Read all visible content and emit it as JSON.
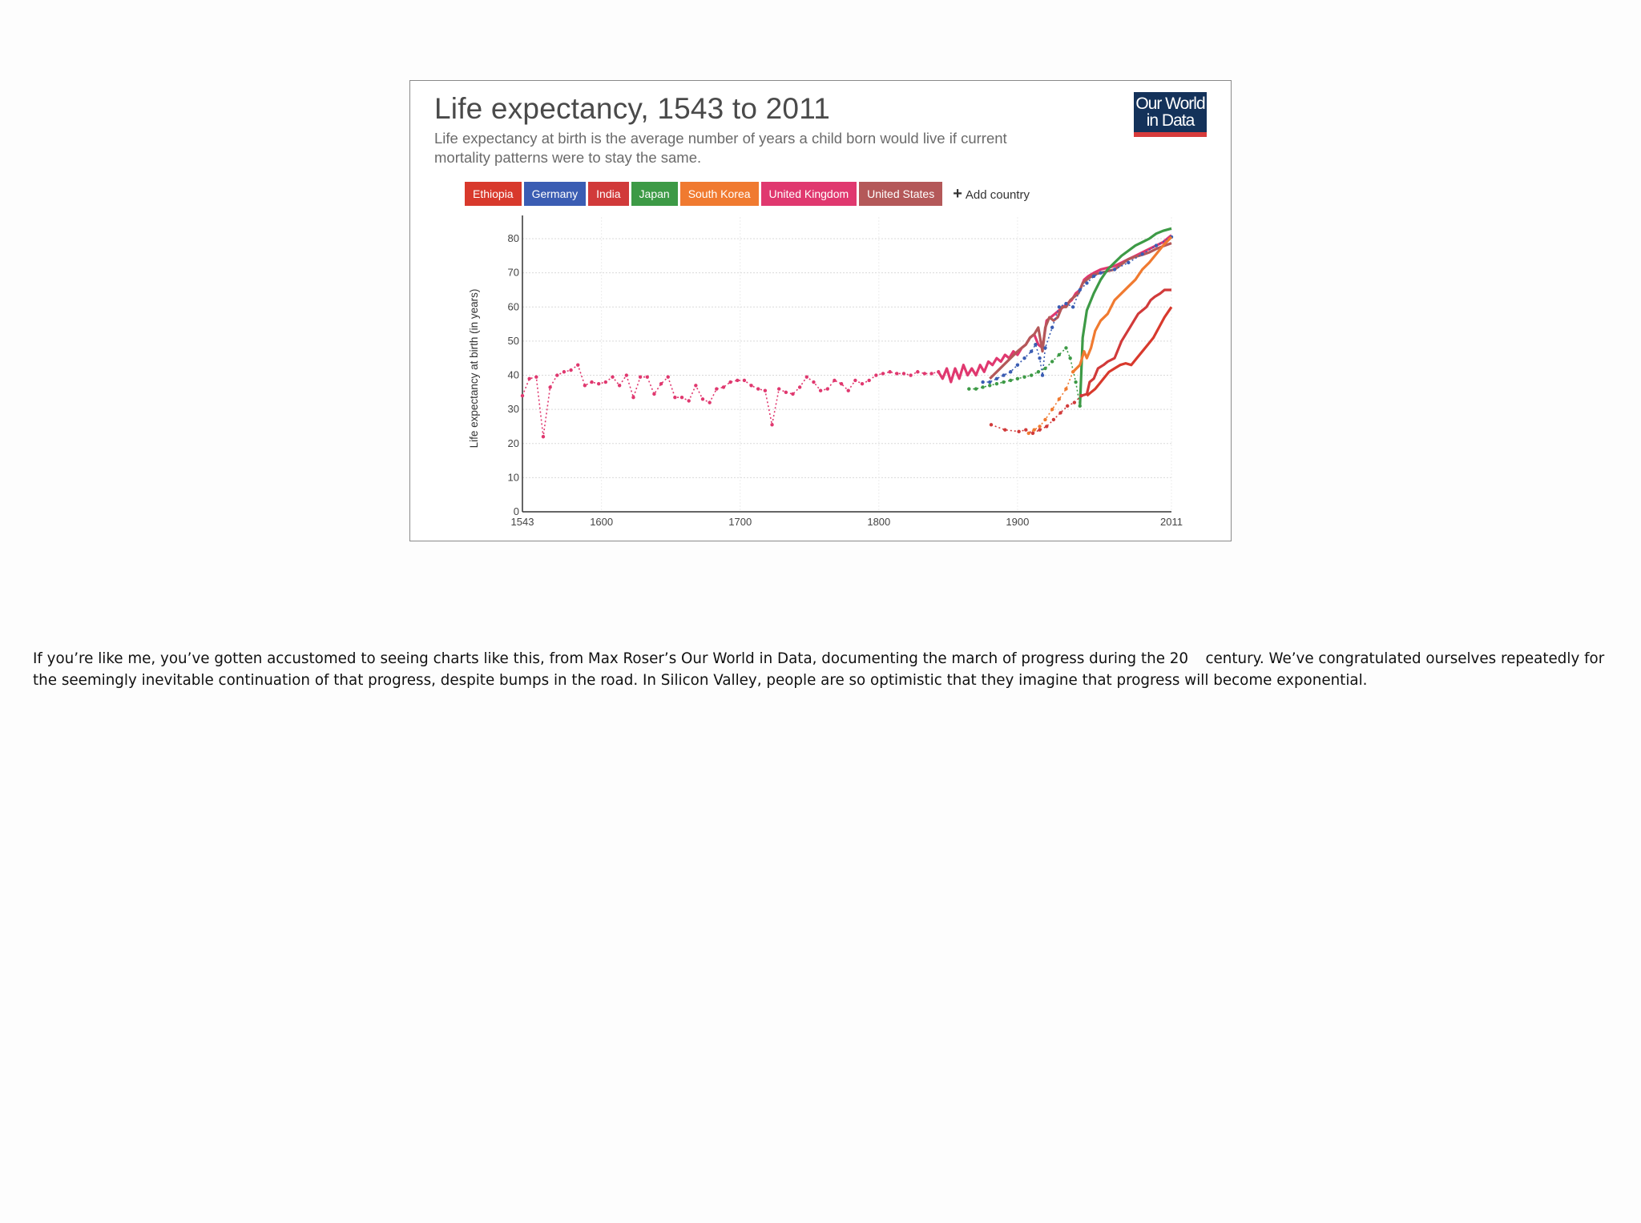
{
  "chart_data": {
    "type": "line",
    "title": "Life expectancy, 1543 to 2011",
    "subtitle": "Life expectancy at birth is the average number of years a child born would live if current mortality patterns were to stay the same.",
    "source_logo": {
      "line1": "Our World",
      "line2": "in Data"
    },
    "ylabel": "Life expectancy at birth (in years)",
    "xlabel": "",
    "xlim": [
      1543,
      2011
    ],
    "ylim": [
      0,
      84
    ],
    "x_ticks": [
      1543,
      1600,
      1700,
      1800,
      1900,
      2011
    ],
    "y_ticks": [
      0,
      10,
      20,
      30,
      40,
      50,
      60,
      70,
      80
    ],
    "add_country_label": "Add country",
    "series": [
      {
        "name": "United Kingdom",
        "color": "#e0386f",
        "style": "dotted",
        "points": [
          [
            1543,
            34
          ],
          [
            1548,
            39
          ],
          [
            1553,
            39.5
          ],
          [
            1558,
            22
          ],
          [
            1563,
            36.5
          ],
          [
            1568,
            40
          ],
          [
            1573,
            41
          ],
          [
            1578,
            41.5
          ],
          [
            1583,
            43
          ],
          [
            1588,
            37
          ],
          [
            1593,
            38
          ],
          [
            1598,
            37.5
          ],
          [
            1603,
            38
          ],
          [
            1608,
            39.5
          ],
          [
            1613,
            37
          ],
          [
            1618,
            40
          ],
          [
            1623,
            33.5
          ],
          [
            1628,
            39.5
          ],
          [
            1633,
            39.5
          ],
          [
            1638,
            34.5
          ],
          [
            1643,
            37.5
          ],
          [
            1648,
            39.5
          ],
          [
            1653,
            33.5
          ],
          [
            1658,
            33.5
          ],
          [
            1663,
            32.5
          ],
          [
            1668,
            37
          ],
          [
            1673,
            33
          ],
          [
            1678,
            32
          ],
          [
            1683,
            36
          ],
          [
            1688,
            36.5
          ],
          [
            1693,
            38
          ],
          [
            1698,
            38.5
          ],
          [
            1703,
            38.5
          ],
          [
            1708,
            37
          ],
          [
            1713,
            36
          ],
          [
            1718,
            35.5
          ],
          [
            1723,
            25.5
          ],
          [
            1728,
            36
          ],
          [
            1733,
            35
          ],
          [
            1738,
            34.5
          ],
          [
            1743,
            36.5
          ],
          [
            1748,
            39.5
          ],
          [
            1753,
            38
          ],
          [
            1758,
            35.5
          ],
          [
            1763,
            36
          ],
          [
            1768,
            38.5
          ],
          [
            1773,
            37.5
          ],
          [
            1778,
            35.5
          ],
          [
            1783,
            38.5
          ],
          [
            1788,
            37.5
          ],
          [
            1793,
            38.5
          ],
          [
            1798,
            40
          ],
          [
            1803,
            40.5
          ],
          [
            1808,
            41
          ],
          [
            1813,
            40.5
          ],
          [
            1818,
            40.5
          ],
          [
            1823,
            40
          ],
          [
            1828,
            41
          ],
          [
            1833,
            40.5
          ],
          [
            1838,
            40.5
          ],
          [
            1843,
            41
          ]
        ]
      },
      {
        "name": "United Kingdom (modern)",
        "color": "#e0386f",
        "style": "solid",
        "points": [
          [
            1843,
            41
          ],
          [
            1846,
            39
          ],
          [
            1849,
            42
          ],
          [
            1852,
            38
          ],
          [
            1855,
            42
          ],
          [
            1858,
            39
          ],
          [
            1861,
            43
          ],
          [
            1864,
            40
          ],
          [
            1867,
            42
          ],
          [
            1870,
            40
          ],
          [
            1873,
            43
          ],
          [
            1876,
            41
          ],
          [
            1879,
            44
          ],
          [
            1882,
            43
          ],
          [
            1885,
            45
          ],
          [
            1888,
            44
          ],
          [
            1891,
            46
          ],
          [
            1894,
            45
          ],
          [
            1897,
            47
          ],
          [
            1900,
            46
          ],
          [
            1903,
            48
          ],
          [
            1906,
            49
          ],
          [
            1909,
            51
          ],
          [
            1912,
            52
          ],
          [
            1915,
            49
          ],
          [
            1918,
            48
          ],
          [
            1921,
            56
          ],
          [
            1924,
            57
          ],
          [
            1927,
            58
          ],
          [
            1930,
            59
          ],
          [
            1933,
            60
          ],
          [
            1936,
            61
          ],
          [
            1939,
            62
          ],
          [
            1942,
            64
          ],
          [
            1945,
            65
          ],
          [
            1948,
            68
          ],
          [
            1951,
            69
          ],
          [
            1955,
            70
          ],
          [
            1960,
            71
          ],
          [
            1965,
            71.5
          ],
          [
            1970,
            72
          ],
          [
            1975,
            73
          ],
          [
            1980,
            74
          ],
          [
            1985,
            75
          ],
          [
            1990,
            76
          ],
          [
            1995,
            77
          ],
          [
            2000,
            78
          ],
          [
            2005,
            79
          ],
          [
            2011,
            81
          ]
        ]
      },
      {
        "name": "United States",
        "color": "#b45859",
        "style": "solid",
        "points": [
          [
            1880,
            39
          ],
          [
            1885,
            41
          ],
          [
            1890,
            43
          ],
          [
            1895,
            45
          ],
          [
            1900,
            47
          ],
          [
            1903,
            48
          ],
          [
            1906,
            49
          ],
          [
            1909,
            51
          ],
          [
            1912,
            52
          ],
          [
            1915,
            54
          ],
          [
            1918,
            47
          ],
          [
            1920,
            54
          ],
          [
            1923,
            57
          ],
          [
            1926,
            56
          ],
          [
            1929,
            57
          ],
          [
            1932,
            60
          ],
          [
            1935,
            60
          ],
          [
            1938,
            62
          ],
          [
            1941,
            63
          ],
          [
            1944,
            64
          ],
          [
            1947,
            67
          ],
          [
            1950,
            68
          ],
          [
            1955,
            69.5
          ],
          [
            1960,
            70
          ],
          [
            1965,
            70.5
          ],
          [
            1970,
            71
          ],
          [
            1975,
            72.5
          ],
          [
            1980,
            74
          ],
          [
            1985,
            74.7
          ],
          [
            1990,
            75.3
          ],
          [
            1995,
            76
          ],
          [
            2000,
            77
          ],
          [
            2005,
            77.8
          ],
          [
            2011,
            78.7
          ]
        ]
      },
      {
        "name": "Germany",
        "color": "#3b5db3",
        "style": "dotted",
        "points": [
          [
            1875,
            38
          ],
          [
            1880,
            38
          ],
          [
            1885,
            39
          ],
          [
            1890,
            40
          ],
          [
            1895,
            41
          ],
          [
            1900,
            43
          ],
          [
            1905,
            45
          ],
          [
            1910,
            47
          ],
          [
            1913,
            49
          ],
          [
            1916,
            45
          ],
          [
            1918,
            40
          ],
          [
            1920,
            48
          ],
          [
            1925,
            54
          ],
          [
            1930,
            60
          ],
          [
            1935,
            61
          ],
          [
            1940,
            60
          ],
          [
            1945,
            65
          ],
          [
            1950,
            67
          ],
          [
            1955,
            69
          ],
          [
            1960,
            70
          ],
          [
            1970,
            71
          ],
          [
            1980,
            73
          ],
          [
            1990,
            75.5
          ],
          [
            2000,
            78
          ],
          [
            2011,
            80.5
          ]
        ]
      },
      {
        "name": "Japan",
        "color": "#3d9a46",
        "style": "dotted",
        "points": [
          [
            1865,
            36
          ],
          [
            1870,
            36
          ],
          [
            1875,
            36.5
          ],
          [
            1880,
            37
          ],
          [
            1885,
            37.5
          ],
          [
            1890,
            38
          ],
          [
            1895,
            38.5
          ],
          [
            1900,
            39
          ],
          [
            1905,
            39.5
          ],
          [
            1910,
            40
          ],
          [
            1915,
            41
          ],
          [
            1920,
            42
          ],
          [
            1925,
            44
          ],
          [
            1930,
            46
          ],
          [
            1935,
            48
          ],
          [
            1938,
            45
          ],
          [
            1942,
            38
          ],
          [
            1945,
            31
          ]
        ]
      },
      {
        "name": "Japan (modern)",
        "color": "#3d9a46",
        "style": "solid",
        "points": [
          [
            1945,
            31
          ],
          [
            1947,
            51
          ],
          [
            1950,
            59
          ],
          [
            1955,
            64
          ],
          [
            1960,
            68
          ],
          [
            1965,
            71
          ],
          [
            1970,
            73
          ],
          [
            1975,
            75
          ],
          [
            1980,
            76.5
          ],
          [
            1985,
            78
          ],
          [
            1990,
            79
          ],
          [
            1995,
            80
          ],
          [
            2000,
            81.5
          ],
          [
            2005,
            82.3
          ],
          [
            2011,
            83
          ]
        ]
      },
      {
        "name": "South Korea",
        "color": "#f07a30",
        "style": "dotted",
        "points": [
          [
            1908,
            23
          ],
          [
            1912,
            24
          ],
          [
            1916,
            25
          ],
          [
            1920,
            27
          ],
          [
            1925,
            30
          ],
          [
            1930,
            33
          ],
          [
            1935,
            36
          ],
          [
            1940,
            41
          ]
        ]
      },
      {
        "name": "South Korea (modern)",
        "color": "#f07a30",
        "style": "solid",
        "points": [
          [
            1940,
            41
          ],
          [
            1945,
            43
          ],
          [
            1948,
            47
          ],
          [
            1950,
            45
          ],
          [
            1953,
            48
          ],
          [
            1956,
            53
          ],
          [
            1960,
            56
          ],
          [
            1965,
            58
          ],
          [
            1970,
            62
          ],
          [
            1975,
            64
          ],
          [
            1980,
            66
          ],
          [
            1985,
            68
          ],
          [
            1990,
            71
          ],
          [
            1995,
            73
          ],
          [
            2000,
            75.5
          ],
          [
            2005,
            78
          ],
          [
            2011,
            80.5
          ]
        ]
      },
      {
        "name": "India",
        "color": "#d13a3a",
        "style": "dotted",
        "points": [
          [
            1881,
            25.5
          ],
          [
            1891,
            24
          ],
          [
            1901,
            23.5
          ],
          [
            1906,
            24
          ],
          [
            1911,
            23
          ],
          [
            1916,
            24
          ],
          [
            1921,
            25
          ],
          [
            1926,
            27
          ],
          [
            1931,
            29
          ],
          [
            1936,
            31
          ],
          [
            1941,
            32
          ],
          [
            1946,
            34
          ]
        ]
      },
      {
        "name": "India (modern)",
        "color": "#d13a3a",
        "style": "solid",
        "points": [
          [
            1946,
            34
          ],
          [
            1950,
            34.5
          ],
          [
            1952,
            38
          ],
          [
            1955,
            39
          ],
          [
            1958,
            42
          ],
          [
            1962,
            43
          ],
          [
            1965,
            44
          ],
          [
            1970,
            45
          ],
          [
            1972,
            47
          ],
          [
            1975,
            50
          ],
          [
            1978,
            52
          ],
          [
            1981,
            54
          ],
          [
            1984,
            56
          ],
          [
            1987,
            58
          ],
          [
            1990,
            59
          ],
          [
            1993,
            60
          ],
          [
            1996,
            62
          ],
          [
            1999,
            63
          ],
          [
            2003,
            64
          ],
          [
            2006,
            65
          ],
          [
            2011,
            65
          ]
        ]
      },
      {
        "name": "Ethiopia",
        "color": "#d8392c",
        "style": "solid",
        "points": [
          [
            1950,
            34
          ],
          [
            1953,
            35
          ],
          [
            1956,
            36
          ],
          [
            1959,
            37.5
          ],
          [
            1962,
            39
          ],
          [
            1966,
            41
          ],
          [
            1970,
            42
          ],
          [
            1974,
            43
          ],
          [
            1978,
            43.5
          ],
          [
            1982,
            43
          ],
          [
            1986,
            45
          ],
          [
            1990,
            47
          ],
          [
            1994,
            49
          ],
          [
            1998,
            51
          ],
          [
            2002,
            54
          ],
          [
            2006,
            57
          ],
          [
            2011,
            60
          ]
        ]
      }
    ],
    "legend": [
      {
        "name": "Ethiopia",
        "color": "#d8392c"
      },
      {
        "name": "Germany",
        "color": "#3b5db3"
      },
      {
        "name": "India",
        "color": "#d13a3a"
      },
      {
        "name": "Japan",
        "color": "#3d9a46"
      },
      {
        "name": "South Korea",
        "color": "#f07a30"
      },
      {
        "name": "United Kingdom",
        "color": "#e0386f"
      },
      {
        "name": "United States",
        "color": "#b45859"
      }
    ]
  },
  "caption": {
    "before_sup": "If you’re like me, you’ve gotten accustomed to seeing charts like this, from Max Roser’s Our World in Data, documenting the march of progress during the 20",
    "after_sup": " century. We’ve congratulated ourselves repeatedly for the seemingly inevitable continuation of that progress, despite bumps in the road. In Silicon Valley, people are so optimistic that they imagine that progress will become exponential."
  }
}
